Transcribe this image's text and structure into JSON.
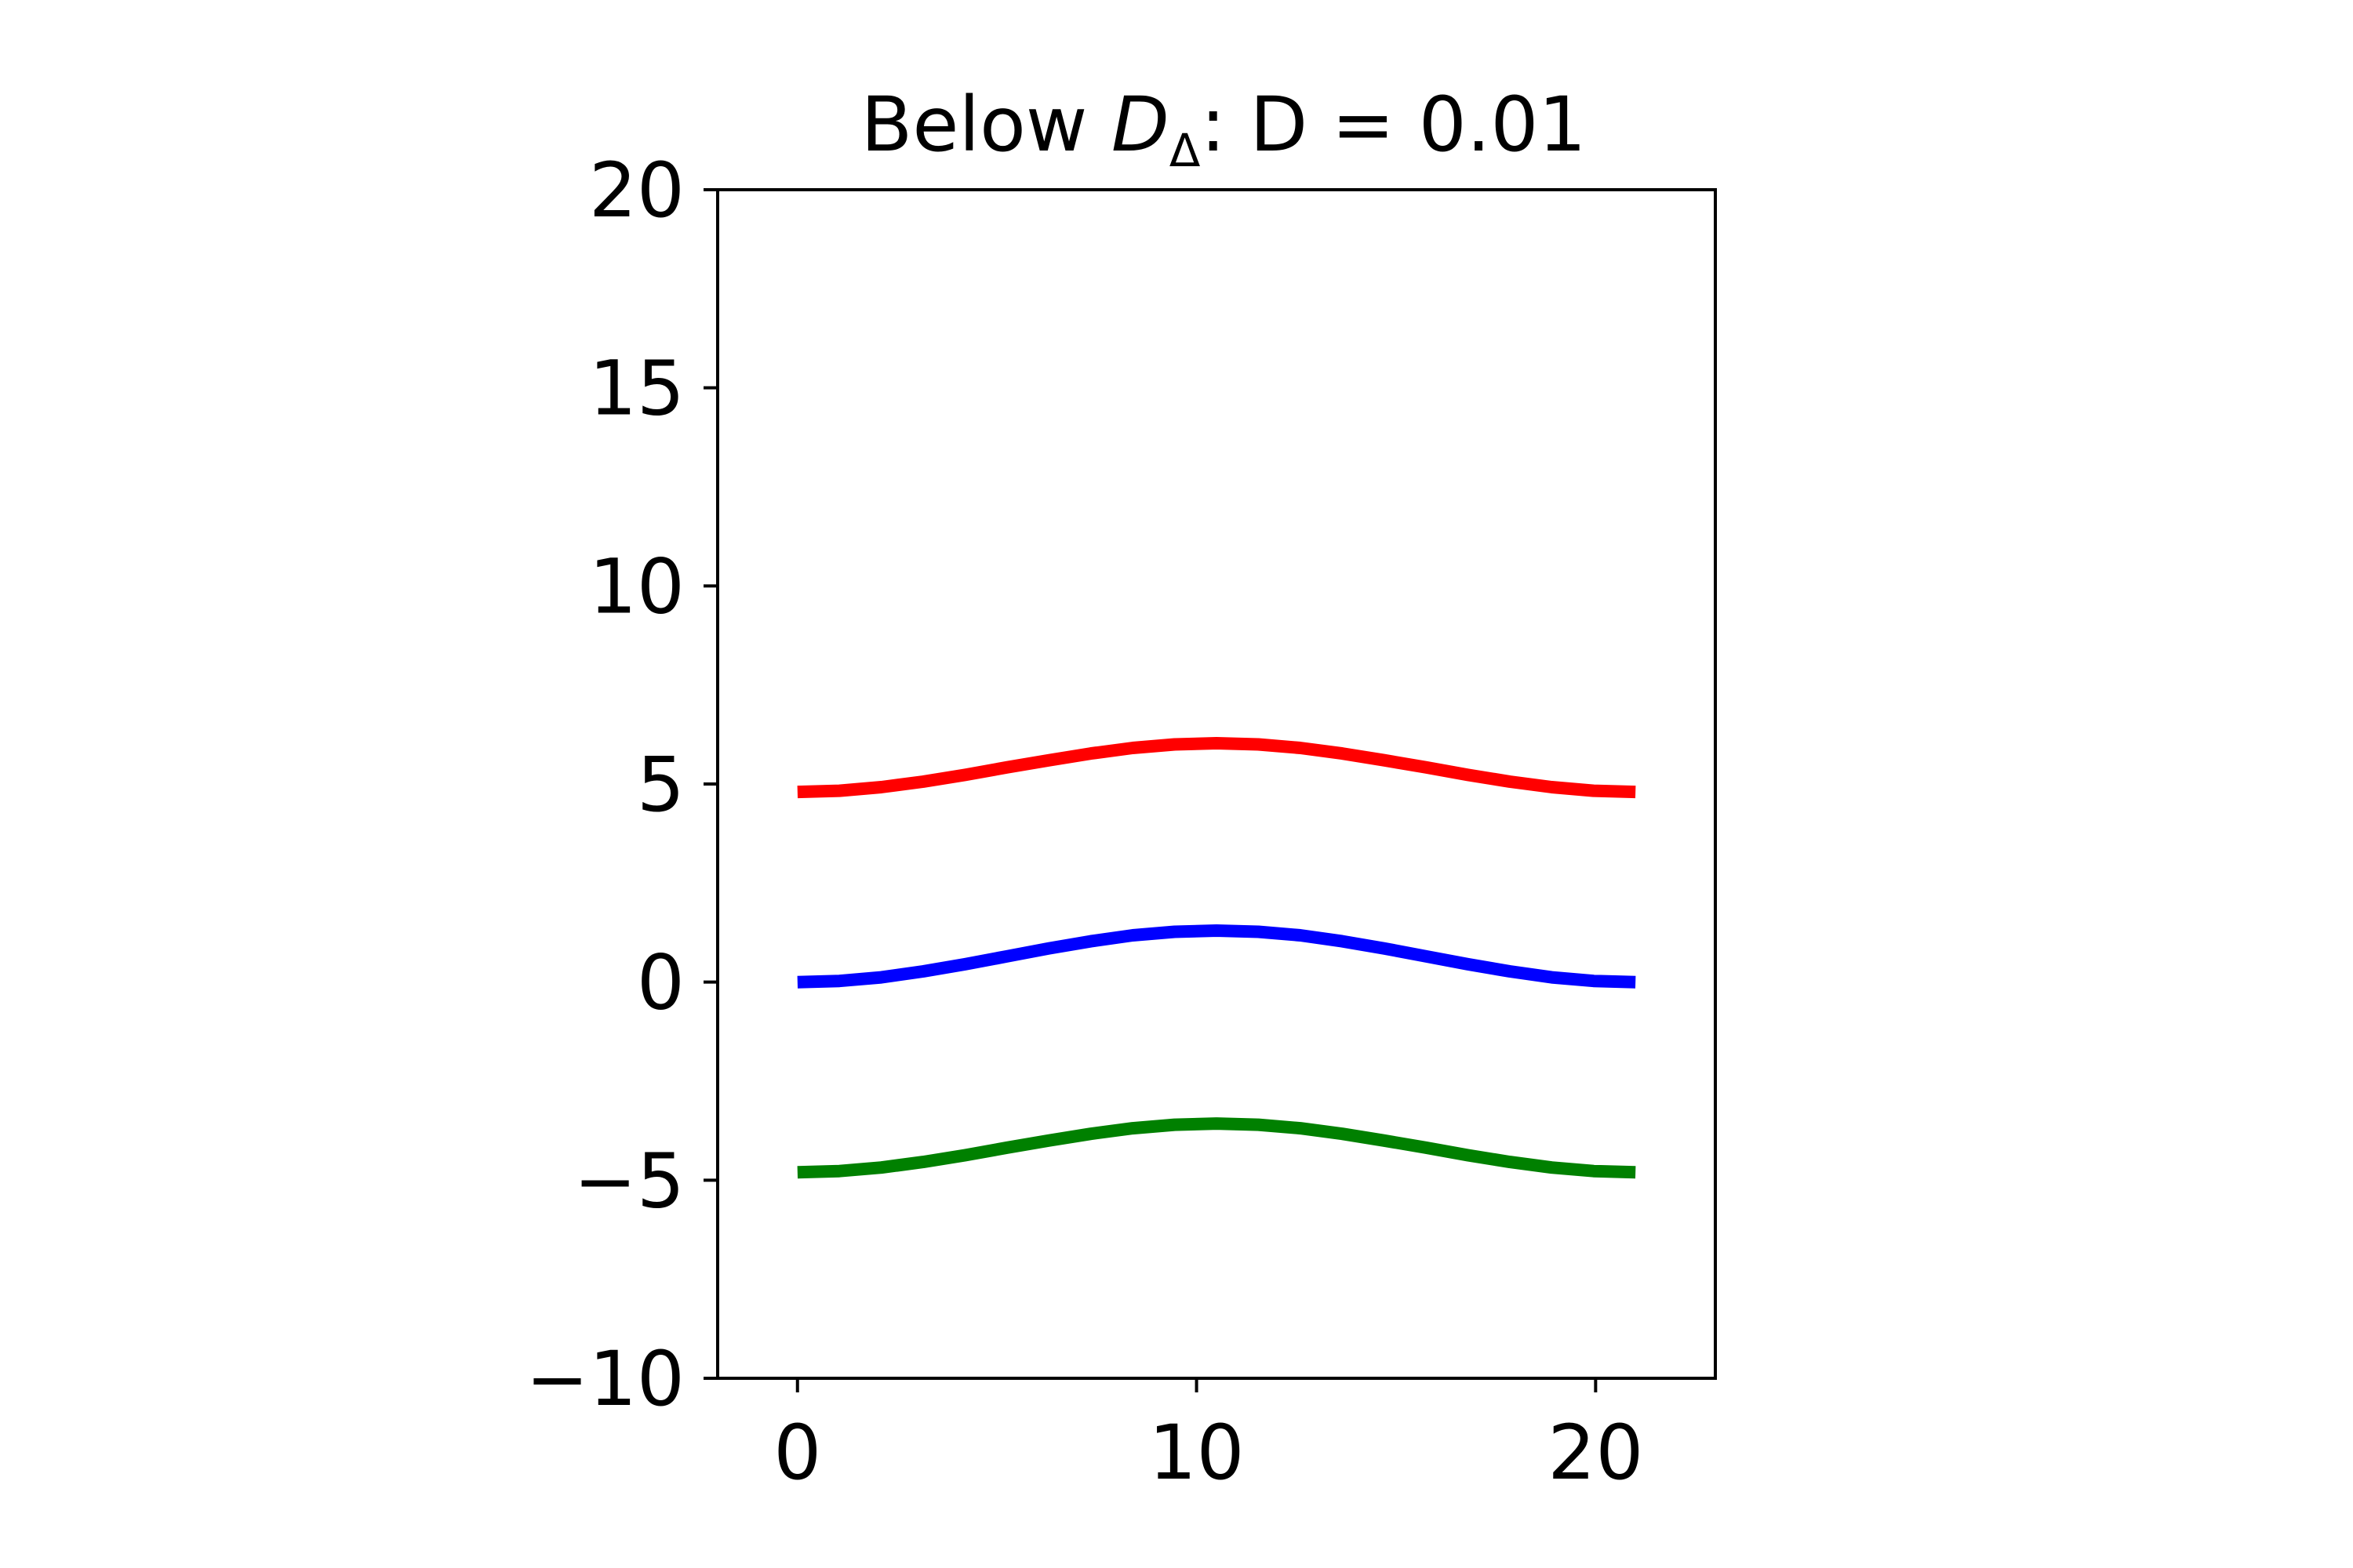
{
  "chart_data": {
    "type": "line",
    "title": {
      "prefix": "Below ",
      "symbol": "D",
      "subscript": "Δ",
      "suffix": ": D = 0.01"
    },
    "xlabel": "",
    "ylabel": "",
    "xlim": [
      -2,
      23
    ],
    "ylim": [
      -10,
      20
    ],
    "x_ticks": [
      0,
      10,
      20
    ],
    "y_ticks": [
      -10,
      -5,
      0,
      5,
      10,
      15,
      20
    ],
    "x_tick_labels": [
      "0",
      "10",
      "20"
    ],
    "y_tick_labels": [
      "−10",
      "−5",
      "0",
      "5",
      "10",
      "15",
      "20"
    ],
    "grid": false,
    "legend": "none",
    "x": [
      0,
      1.05,
      2.1,
      3.15,
      4.2,
      5.25,
      6.3,
      7.35,
      8.4,
      9.45,
      10.5,
      11.55,
      12.6,
      13.65,
      14.7,
      15.75,
      16.8,
      17.85,
      18.9,
      19.95,
      21
    ],
    "series": [
      {
        "color": "#ff0000",
        "values": [
          4.8,
          4.83,
          4.92,
          5.06,
          5.23,
          5.42,
          5.6,
          5.77,
          5.91,
          6.0,
          6.03,
          6.0,
          5.91,
          5.77,
          5.6,
          5.42,
          5.23,
          5.06,
          4.92,
          4.83,
          4.8
        ]
      },
      {
        "color": "#0000ff",
        "values": [
          0.0,
          0.03,
          0.12,
          0.27,
          0.45,
          0.65,
          0.85,
          1.03,
          1.18,
          1.27,
          1.3,
          1.27,
          1.18,
          1.03,
          0.85,
          0.65,
          0.45,
          0.27,
          0.12,
          0.03,
          0.0
        ]
      },
      {
        "color": "#008000",
        "values": [
          -4.8,
          -4.77,
          -4.68,
          -4.54,
          -4.37,
          -4.18,
          -4.0,
          -3.83,
          -3.69,
          -3.6,
          -3.57,
          -3.6,
          -3.69,
          -3.83,
          -4.0,
          -4.18,
          -4.37,
          -4.54,
          -4.68,
          -4.77,
          -4.8
        ]
      }
    ]
  }
}
